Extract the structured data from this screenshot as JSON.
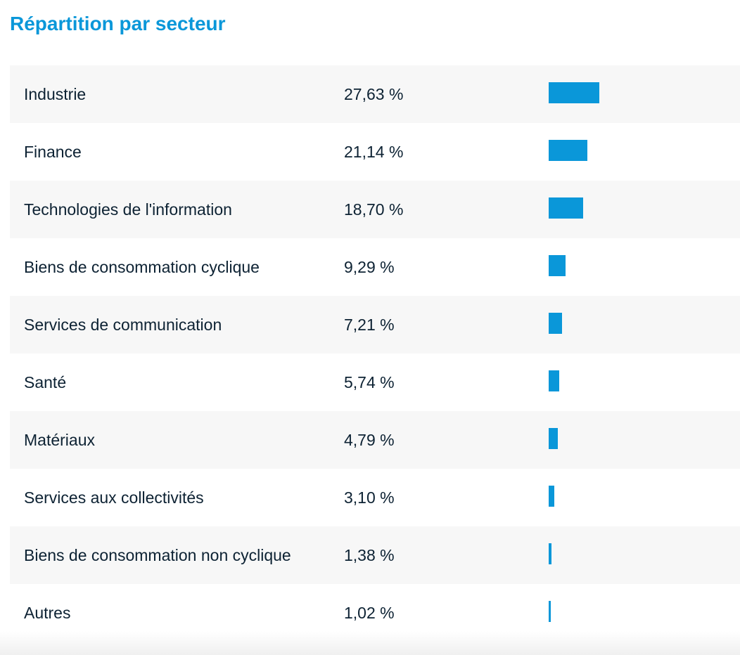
{
  "title": "Répartition par secteur",
  "colors": {
    "accent": "#0a97d9",
    "text": "#0d2233",
    "row_alt": "#f7f7f7"
  },
  "chart_data": {
    "type": "bar",
    "title": "Répartition par secteur",
    "orientation": "horizontal",
    "categories": [
      "Industrie",
      "Finance",
      "Technologies de l'information",
      "Biens de consommation cyclique",
      "Services de communication",
      "Santé",
      "Matériaux",
      "Services aux collectivités",
      "Biens de consommation non cyclique",
      "Autres"
    ],
    "values": [
      27.63,
      21.14,
      18.7,
      9.29,
      7.21,
      5.74,
      4.79,
      3.1,
      1.38,
      1.02
    ],
    "value_labels": [
      "27,63 %",
      "21,14 %",
      "18,70 %",
      "9,29 %",
      "7,21 %",
      "5,74 %",
      "4,79 %",
      "3,10 %",
      "1,38 %",
      "1,02 %"
    ],
    "xlim": [
      0,
      100
    ],
    "grid": false,
    "legend": "none"
  }
}
